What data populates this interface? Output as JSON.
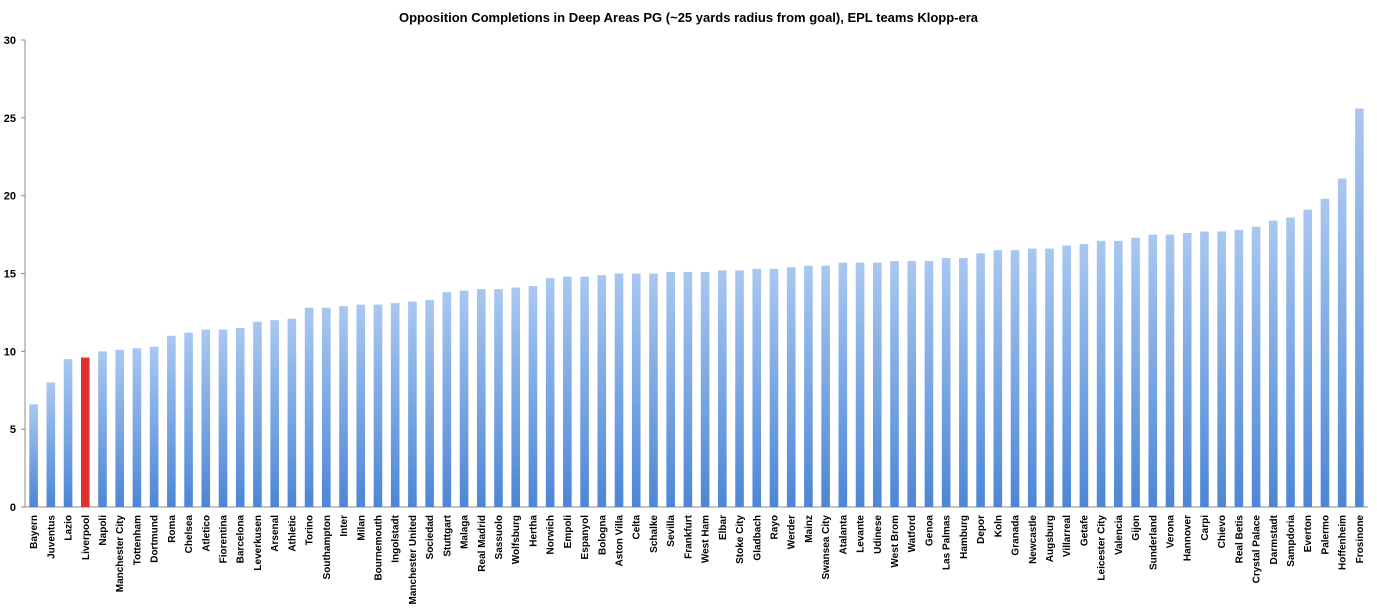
{
  "chart_data": {
    "type": "bar",
    "title": "Opposition Completions in Deep Areas PG (~25 yards radius from goal), EPL teams Klopp-era",
    "xlabel": "",
    "ylabel": "",
    "ylim": [
      0,
      30
    ],
    "yticks": [
      0,
      5,
      10,
      15,
      20,
      25,
      30
    ],
    "grid": false,
    "legend": "none",
    "colors": {
      "default": "#6fa0e0",
      "default_light": "#a9c8f0",
      "highlight": "#e03030"
    },
    "highlight": "Liverpool",
    "categories": [
      "Bayern",
      "Juventus",
      "Lazio",
      "Liverpool",
      "Napoli",
      "Manchester City",
      "Tottenham",
      "Dortmund",
      "Roma",
      "Chelsea",
      "Atletico",
      "Fiorentina",
      "Barcelona",
      "Leverkusen",
      "Arsenal",
      "Athletic",
      "Torino",
      "Southampton",
      "Inter",
      "Milan",
      "Bournemouth",
      "Ingolstadt",
      "Manchester United",
      "Sociedad",
      "Stuttgart",
      "Malaga",
      "Real Madrid",
      "Sassuolo",
      "Wolfsburg",
      "Hertha",
      "Norwich",
      "Empoli",
      "Espanyol",
      "Bologna",
      "Aston Villa",
      "Celta",
      "Schalke",
      "Sevilla",
      "Frankfurt",
      "West Ham",
      "Elbar",
      "Stoke City",
      "Gladbach",
      "Rayo",
      "Werder",
      "Mainz",
      "Swansea City",
      "Atalanta",
      "Levante",
      "Udinese",
      "West Brom",
      "Watford",
      "Genoa",
      "Las Palmas",
      "Hamburg",
      "Depor",
      "Koln",
      "Granada",
      "Newcastle",
      "Augsburg",
      "Villarreal",
      "Getafe",
      "Leicester City",
      "Valencia",
      "Gijon",
      "Sunderland",
      "Verona",
      "Hannover",
      "Carpi",
      "Chievo",
      "Real Betis",
      "Crystal Palace",
      "Darmstadt",
      "Sampdoria",
      "Everton",
      "Palermo",
      "Hoffenheim",
      "Frosinone"
    ],
    "values": [
      6.6,
      8.0,
      9.5,
      9.6,
      10.0,
      10.1,
      10.2,
      10.3,
      11.0,
      11.2,
      11.4,
      11.4,
      11.5,
      11.9,
      12.0,
      12.1,
      12.8,
      12.8,
      12.9,
      13.0,
      13.0,
      13.1,
      13.2,
      13.3,
      13.8,
      13.9,
      14.0,
      14.0,
      14.1,
      14.2,
      14.7,
      14.8,
      14.8,
      14.9,
      15.0,
      15.0,
      15.0,
      15.1,
      15.1,
      15.1,
      15.2,
      15.2,
      15.3,
      15.3,
      15.4,
      15.5,
      15.5,
      15.7,
      15.7,
      15.7,
      15.8,
      15.8,
      15.8,
      16.0,
      16.0,
      16.3,
      16.5,
      16.5,
      16.6,
      16.6,
      16.8,
      16.9,
      17.1,
      17.1,
      17.3,
      17.5,
      17.5,
      17.6,
      17.7,
      17.7,
      17.8,
      18.0,
      18.4,
      18.6,
      19.1,
      19.8,
      21.1,
      25.6
    ]
  }
}
